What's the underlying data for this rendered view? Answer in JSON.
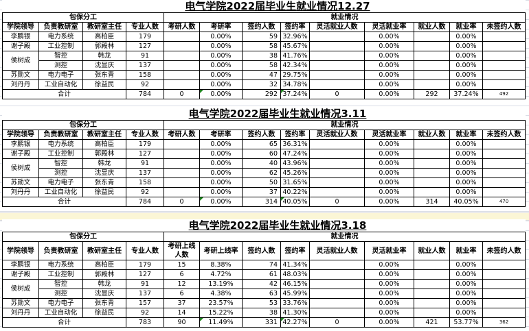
{
  "headers_group": {
    "left": "包保分工",
    "right": "就业情况"
  },
  "total_label": "合计",
  "rows_common": [
    {
      "leader": "李鹏银",
      "office": "电力系统",
      "director": "高柏臣"
    },
    {
      "leader": "谢子殿",
      "office": "工业控制",
      "director": "郭殿林"
    },
    {
      "leader": "侯树成",
      "office": "智控",
      "director": "韩龙"
    },
    {
      "leader": "",
      "office": "测控",
      "director": "沈显庆"
    },
    {
      "leader": "苏勋文",
      "office": "电力电子",
      "director": "张东青"
    },
    {
      "leader": "刘丹丹",
      "office": "工业自动化",
      "director": "徐益民"
    }
  ],
  "tables": [
    {
      "title": "电气学院2022届毕业生就业情况12.27",
      "columns": [
        "学院领导",
        "负责教研室",
        "教研室主任",
        "专业人数",
        "考研人数",
        "考研率",
        "签约人数",
        "签约率",
        "灵活就业人数",
        "灵活就业率",
        "就业人数",
        "就业率",
        "未签约人数"
      ],
      "rows": [
        [
          "179",
          "",
          "0.00%",
          "59",
          "32.96%",
          "",
          "0.00%",
          "",
          "0.00%",
          ""
        ],
        [
          "127",
          "",
          "0.00%",
          "58",
          "45.67%",
          "",
          "0.00%",
          "",
          "0.00%",
          ""
        ],
        [
          "91",
          "",
          "0.00%",
          "38",
          "41.76%",
          "",
          "0.00%",
          "",
          "0.00%",
          ""
        ],
        [
          "137",
          "",
          "0.00%",
          "58",
          "42.34%",
          "",
          "0.00%",
          "",
          "0.00%",
          ""
        ],
        [
          "158",
          "",
          "0.00%",
          "47",
          "29.75%",
          "",
          "0.00%",
          "",
          "0.00%",
          ""
        ],
        [
          "92",
          "",
          "0.00%",
          "32",
          "34.78%",
          "",
          "0.00%",
          "",
          "0.00%",
          ""
        ]
      ],
      "total": [
        "784",
        "0",
        "0.00%",
        "292",
        "37.24%",
        "0",
        "0.00%",
        "292",
        "37.24%",
        "492"
      ]
    },
    {
      "title": "电气学院2022届毕业生就业情况3.11",
      "columns": [
        "学院领导",
        "负责教研室",
        "教研室主任",
        "专业人数",
        "考研人数",
        "考研率",
        "签约人数",
        "签约率",
        "灵活就业人数",
        "灵活就业率",
        "就业人数",
        "就业率",
        "未签约人数"
      ],
      "rows": [
        [
          "179",
          "",
          "0.00%",
          "65",
          "36.31%",
          "",
          "0.00%",
          "",
          "0.00%",
          ""
        ],
        [
          "127",
          "",
          "0.00%",
          "60",
          "47.24%",
          "",
          "0.00%",
          "",
          "0.00%",
          ""
        ],
        [
          "91",
          "",
          "0.00%",
          "40",
          "43.96%",
          "",
          "0.00%",
          "",
          "0.00%",
          ""
        ],
        [
          "137",
          "",
          "0.00%",
          "62",
          "45.26%",
          "",
          "0.00%",
          "",
          "0.00%",
          ""
        ],
        [
          "158",
          "",
          "0.00%",
          "50",
          "31.65%",
          "",
          "0.00%",
          "",
          "0.00%",
          ""
        ],
        [
          "92",
          "",
          "0.00%",
          "37",
          "40.22%",
          "",
          "0.00%",
          "",
          "0.00%",
          ""
        ]
      ],
      "total": [
        "784",
        "0",
        "0.00%",
        "314",
        "40.05%",
        "0",
        "0.00%",
        "314",
        "40.05%",
        "470"
      ]
    },
    {
      "title": "电气学院2022届毕业生就业情况3.18",
      "columns": [
        "学院领导",
        "负责教研室",
        "教研室主任",
        "专业人数",
        "考研上线人数",
        "考研上线率",
        "签约人数",
        "签约率",
        "灵活就业人数",
        "灵活就业率",
        "就业人数",
        "就业率",
        "未签约人数"
      ],
      "rows": [
        [
          "179",
          "15",
          "8.38%",
          "74",
          "41.34%",
          "",
          "0.00%",
          "",
          "0.00%",
          ""
        ],
        [
          "127",
          "6",
          "4.72%",
          "61",
          "48.03%",
          "",
          "0.00%",
          "",
          "0.00%",
          ""
        ],
        [
          "91",
          "12",
          "13.19%",
          "42",
          "46.15%",
          "",
          "0.00%",
          "",
          "0.00%",
          ""
        ],
        [
          "137",
          "6",
          "4.38%",
          "63",
          "45.99%",
          "",
          "0.00%",
          "",
          "0.00%",
          ""
        ],
        [
          "157",
          "37",
          "23.57%",
          "53",
          "33.76%",
          "",
          "0.00%",
          "",
          "0.00%",
          ""
        ],
        [
          "92",
          "14",
          "15.22%",
          "38",
          "41.30%",
          "",
          "0.00%",
          "",
          "0.00%",
          ""
        ]
      ],
      "total": [
        "783",
        "90",
        "11.49%",
        "331",
        "42.27%",
        "0",
        "0.00%",
        "421",
        "53.77%",
        "362"
      ]
    }
  ]
}
